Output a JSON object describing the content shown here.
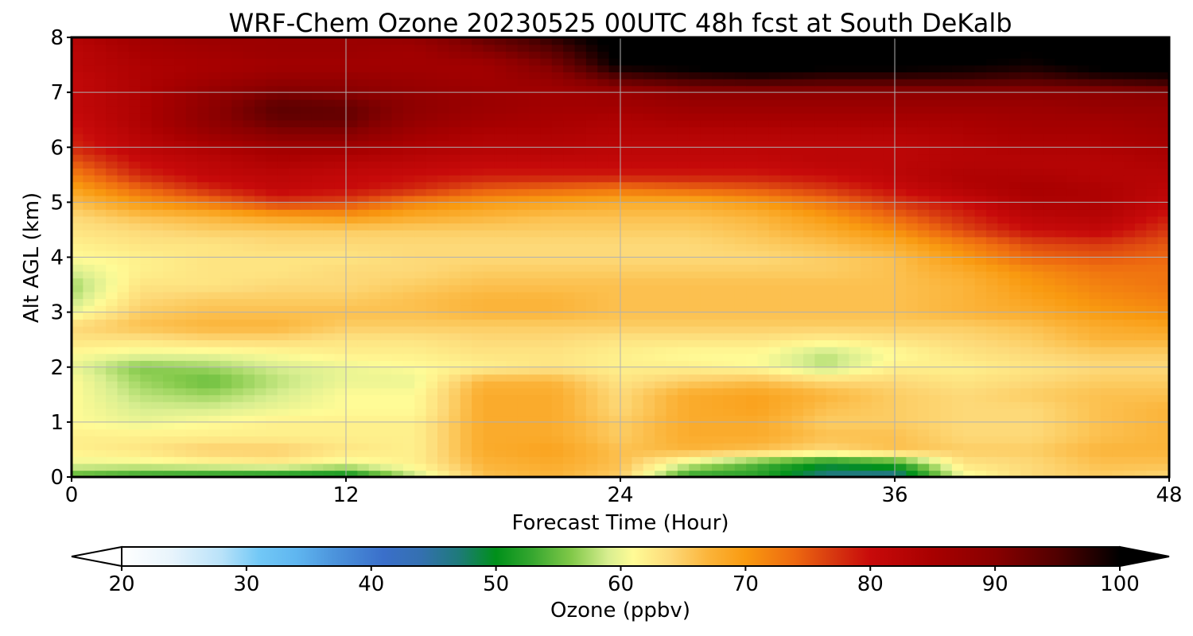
{
  "chart_data": {
    "type": "heatmap",
    "title": "WRF-Chem Ozone  20230525 00UTC 48h fcst at South DeKalb",
    "xlabel": "Forecast Time (Hour)",
    "ylabel": "Alt AGL (km)",
    "xlim": [
      0,
      48
    ],
    "ylim": [
      0,
      8
    ],
    "xticks": [
      "0",
      "12",
      "24",
      "36",
      "48"
    ],
    "yticks": [
      "0",
      "1",
      "2",
      "3",
      "4",
      "5",
      "6",
      "7",
      "8"
    ],
    "grid": true,
    "x": [
      0,
      3,
      6,
      9,
      12,
      15,
      18,
      21,
      24,
      27,
      30,
      33,
      36,
      39,
      42,
      45,
      48
    ],
    "y": [
      0,
      0.25,
      0.5,
      0.75,
      1,
      1.25,
      1.5,
      1.75,
      2,
      2.25,
      2.5,
      2.75,
      3,
      3.25,
      3.5,
      3.75,
      4,
      4.25,
      4.5,
      4.75,
      5,
      5.25,
      5.5,
      5.75,
      6,
      6.25,
      6.5,
      6.75,
      7,
      7.25,
      7.5,
      7.75,
      8
    ],
    "z": [
      [
        54,
        52,
        51,
        50,
        49,
        58,
        66,
        67,
        65,
        52,
        52,
        46,
        45,
        60,
        64,
        65,
        64
      ],
      [
        60,
        60,
        61,
        62,
        60,
        62,
        67,
        68,
        66,
        59,
        54,
        50,
        52,
        63,
        64,
        66,
        66
      ],
      [
        62,
        63,
        65,
        65,
        63,
        62,
        68,
        69,
        66,
        67,
        66,
        64,
        66,
        65,
        65,
        67,
        67
      ],
      [
        62,
        62,
        62,
        62,
        62,
        62,
        68,
        68,
        65,
        68,
        68,
        66,
        66,
        64,
        64,
        66,
        67
      ],
      [
        61,
        60,
        61,
        62,
        62,
        62,
        68,
        68,
        65,
        68,
        68,
        65,
        65,
        64,
        64,
        66,
        67
      ],
      [
        61,
        59,
        59,
        60,
        61,
        61,
        68,
        68,
        64,
        68,
        69,
        66,
        65,
        64,
        64,
        66,
        67
      ],
      [
        61,
        58,
        57,
        59,
        61,
        61,
        68,
        68,
        64,
        68,
        69,
        67,
        65,
        64,
        65,
        66,
        66
      ],
      [
        61,
        57,
        55,
        58,
        60,
        60,
        67,
        67,
        63,
        65,
        66,
        64,
        64,
        63,
        64,
        65,
        65
      ],
      [
        60,
        56,
        57,
        59,
        60,
        61,
        62,
        63,
        62,
        62,
        61,
        58,
        62,
        62,
        63,
        64,
        64
      ],
      [
        61,
        60,
        60,
        61,
        62,
        62,
        63,
        63,
        62,
        61,
        61,
        58,
        61,
        63,
        64,
        65,
        65
      ],
      [
        63,
        63,
        64,
        64,
        63,
        63,
        64,
        64,
        63,
        63,
        63,
        62,
        63,
        64,
        65,
        67,
        67
      ],
      [
        64,
        66,
        67,
        67,
        65,
        65,
        65,
        65,
        65,
        65,
        65,
        65,
        65,
        65,
        66,
        68,
        69
      ],
      [
        60,
        65,
        66,
        66,
        66,
        66,
        67,
        67,
        66,
        66,
        66,
        66,
        66,
        67,
        68,
        70,
        71
      ],
      [
        58,
        64,
        65,
        65,
        65,
        66,
        67,
        67,
        66,
        66,
        66,
        66,
        66,
        67,
        69,
        71,
        72
      ],
      [
        57,
        63,
        63,
        64,
        64,
        65,
        66,
        66,
        66,
        66,
        66,
        66,
        66,
        67,
        70,
        72,
        73
      ],
      [
        59,
        62,
        63,
        63,
        64,
        64,
        65,
        65,
        65,
        65,
        65,
        65,
        66,
        68,
        71,
        73,
        73
      ],
      [
        61,
        62,
        63,
        63,
        63,
        64,
        64,
        64,
        64,
        64,
        64,
        65,
        66,
        70,
        74,
        75,
        74
      ],
      [
        62,
        63,
        63,
        64,
        64,
        64,
        64,
        64,
        64,
        64,
        65,
        66,
        68,
        72,
        76,
        77,
        75
      ],
      [
        63,
        64,
        65,
        65,
        65,
        65,
        65,
        65,
        65,
        65,
        66,
        68,
        71,
        76,
        80,
        81,
        77
      ],
      [
        64,
        66,
        67,
        69,
        70,
        68,
        67,
        66,
        66,
        66,
        67,
        70,
        74,
        78,
        82,
        83,
        79
      ],
      [
        66,
        70,
        73,
        77,
        76,
        72,
        70,
        69,
        68,
        68,
        70,
        73,
        77,
        80,
        84,
        84,
        81
      ],
      [
        69,
        74,
        78,
        81,
        80,
        78,
        75,
        74,
        73,
        74,
        75,
        77,
        80,
        83,
        85,
        84,
        82
      ],
      [
        72,
        78,
        81,
        82,
        81,
        80,
        79,
        79,
        79,
        79,
        79,
        80,
        82,
        84,
        84,
        83,
        83
      ],
      [
        75,
        80,
        82,
        84,
        83,
        82,
        81,
        81,
        81,
        81,
        81,
        82,
        82,
        83,
        83,
        83,
        84
      ],
      [
        78,
        82,
        84,
        86,
        86,
        84,
        83,
        83,
        82,
        82,
        82,
        82,
        82,
        83,
        84,
        84,
        85
      ],
      [
        79,
        83,
        87,
        90,
        90,
        86,
        84,
        84,
        83,
        83,
        83,
        83,
        83,
        84,
        85,
        85,
        86
      ],
      [
        80,
        84,
        89,
        93,
        93,
        88,
        86,
        85,
        84,
        85,
        85,
        85,
        85,
        85,
        86,
        86,
        87
      ],
      [
        81,
        84,
        89,
        94,
        93,
        89,
        87,
        86,
        86,
        87,
        87,
        87,
        87,
        87,
        87,
        88,
        88
      ],
      [
        81,
        84,
        88,
        91,
        90,
        88,
        87,
        86,
        87,
        89,
        89,
        89,
        89,
        89,
        89,
        89,
        90
      ],
      [
        81,
        84,
        86,
        88,
        88,
        87,
        86,
        88,
        94,
        96,
        97,
        96,
        96,
        96,
        95,
        97,
        98
      ],
      [
        82,
        84,
        85,
        86,
        86,
        86,
        86,
        91,
        100,
        101,
        102,
        101,
        101,
        100,
        99,
        101,
        101
      ],
      [
        82,
        85,
        86,
        87,
        87,
        86,
        90,
        94,
        101,
        102,
        103,
        102,
        101,
        101,
        100,
        102,
        102
      ],
      [
        83,
        86,
        87,
        87,
        87,
        88,
        93,
        97,
        102,
        103,
        104,
        103,
        102,
        101,
        101,
        102,
        103
      ]
    ],
    "colorbar": {
      "label": "Ozone  (ppbv)",
      "min": 20,
      "max": 100,
      "ticks": [
        "20",
        "30",
        "40",
        "50",
        "60",
        "70",
        "80",
        "90",
        "100"
      ],
      "extend": "both",
      "colors": [
        {
          "v": 20,
          "c": "#ffffff"
        },
        {
          "v": 24,
          "c": "#e8f4fc"
        },
        {
          "v": 28,
          "c": "#b9e2f9"
        },
        {
          "v": 31,
          "c": "#72c8f6"
        },
        {
          "v": 34,
          "c": "#5fb6f0"
        },
        {
          "v": 37,
          "c": "#4c94dc"
        },
        {
          "v": 41,
          "c": "#3a6fca"
        },
        {
          "v": 44,
          "c": "#3470b0"
        },
        {
          "v": 47,
          "c": "#1e7a7a"
        },
        {
          "v": 50,
          "c": "#00901a"
        },
        {
          "v": 53,
          "c": "#38a830"
        },
        {
          "v": 56,
          "c": "#80c848"
        },
        {
          "v": 59,
          "c": "#d8ee90"
        },
        {
          "v": 61,
          "c": "#fffb96"
        },
        {
          "v": 64,
          "c": "#fdd978"
        },
        {
          "v": 67,
          "c": "#fbb43a"
        },
        {
          "v": 70,
          "c": "#f99a10"
        },
        {
          "v": 74,
          "c": "#ed6810"
        },
        {
          "v": 77,
          "c": "#d73810"
        },
        {
          "v": 80,
          "c": "#c80a0a"
        },
        {
          "v": 85,
          "c": "#a80000"
        },
        {
          "v": 90,
          "c": "#880000"
        },
        {
          "v": 95,
          "c": "#500000"
        },
        {
          "v": 100,
          "c": "#000000"
        }
      ]
    }
  }
}
